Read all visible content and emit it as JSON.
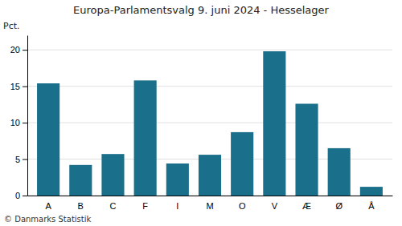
{
  "chart_data": {
    "type": "bar",
    "title": "Europa-Parlamentsvalg 9. juni 2024 - Hesselager",
    "categories": [
      "A",
      "B",
      "C",
      "F",
      "I",
      "M",
      "O",
      "V",
      "Æ",
      "Ø",
      "Å"
    ],
    "values": [
      15.4,
      4.2,
      5.7,
      15.8,
      4.4,
      5.6,
      8.7,
      19.8,
      12.6,
      6.5,
      1.2
    ],
    "color": "#1a6f8a",
    "ylabel": "Pct.",
    "ylim": [
      0,
      22
    ],
    "yticks": [
      0,
      5,
      10,
      15,
      20
    ],
    "grid": true,
    "annotations": [
      "© Danmarks Statistik"
    ]
  }
}
